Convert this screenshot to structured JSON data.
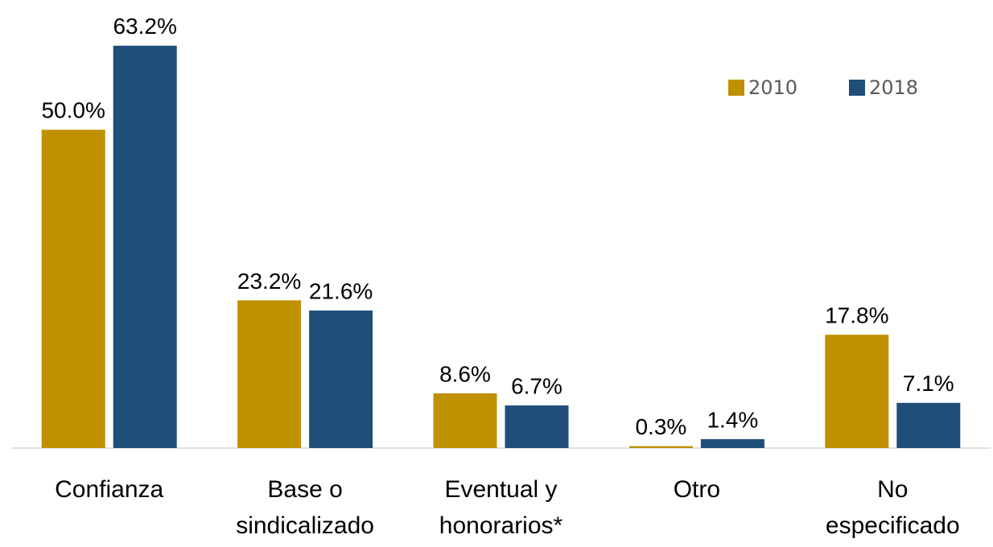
{
  "chart_data": {
    "type": "bar",
    "categories": [
      "Confianza",
      "Base o\nsindicalizado",
      "Eventual y\nhonorarios*",
      "Otro",
      "No\nespecificado"
    ],
    "series": [
      {
        "name": "2010",
        "color": "#bf9000",
        "values": [
          50.0,
          23.2,
          8.6,
          0.3,
          17.8
        ],
        "value_labels": [
          "50.0%",
          "23.2%",
          "8.6%",
          "0.3%",
          "17.8%"
        ]
      },
      {
        "name": "2018",
        "color": "#1f4e79",
        "values": [
          63.2,
          21.6,
          6.7,
          1.4,
          7.1
        ],
        "value_labels": [
          "63.2%",
          "21.6%",
          "6.7%",
          "1.4%",
          "7.1%"
        ]
      }
    ],
    "ylim": [
      0,
      70
    ],
    "legend": "upper right"
  }
}
